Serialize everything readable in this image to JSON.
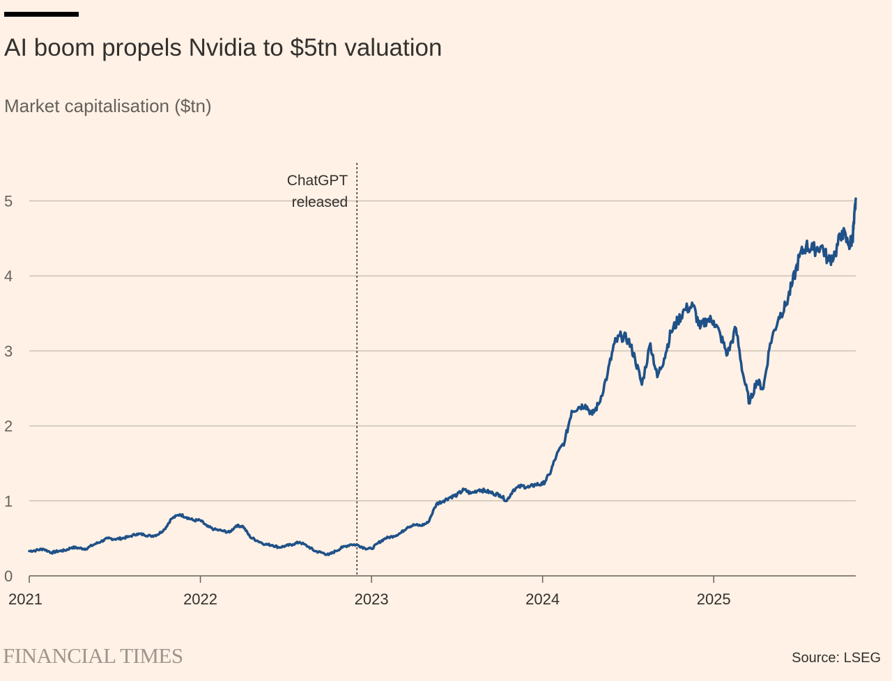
{
  "chart_data": {
    "type": "line",
    "title": "AI boom propels Nvidia to $5tn valuation",
    "subtitle": "Market capitalisation ($tn)",
    "xlabel": "",
    "ylabel": "Market capitalisation ($tn)",
    "x_unit": "year (decimal)",
    "xlim": [
      2021.0,
      2025.83
    ],
    "ylim": [
      0,
      5.5
    ],
    "x_ticks": [
      2021,
      2022,
      2023,
      2024,
      2025
    ],
    "x_tick_labels": [
      "2021",
      "2022",
      "2023",
      "2024",
      "2025"
    ],
    "y_ticks": [
      0,
      1,
      2,
      3,
      4,
      5
    ],
    "y_tick_labels": [
      "0",
      "1",
      "2",
      "3",
      "4",
      "5"
    ],
    "grid": true,
    "legend": "none",
    "annotations": [
      {
        "x": 2022.915,
        "lines": [
          "ChatGPT",
          "released"
        ],
        "style": "dotted-vertical"
      }
    ],
    "series": [
      {
        "name": "Nvidia",
        "color": "#1f5188",
        "points": [
          [
            2021.0,
            0.33
          ],
          [
            2021.04,
            0.34
          ],
          [
            2021.08,
            0.36
          ],
          [
            2021.13,
            0.31
          ],
          [
            2021.17,
            0.33
          ],
          [
            2021.21,
            0.34
          ],
          [
            2021.25,
            0.38
          ],
          [
            2021.29,
            0.37
          ],
          [
            2021.33,
            0.36
          ],
          [
            2021.38,
            0.42
          ],
          [
            2021.42,
            0.46
          ],
          [
            2021.46,
            0.5
          ],
          [
            2021.5,
            0.49
          ],
          [
            2021.54,
            0.5
          ],
          [
            2021.58,
            0.52
          ],
          [
            2021.63,
            0.56
          ],
          [
            2021.67,
            0.55
          ],
          [
            2021.71,
            0.53
          ],
          [
            2021.75,
            0.55
          ],
          [
            2021.79,
            0.62
          ],
          [
            2021.83,
            0.76
          ],
          [
            2021.88,
            0.82
          ],
          [
            2021.92,
            0.78
          ],
          [
            2021.96,
            0.74
          ],
          [
            2022.0,
            0.74
          ],
          [
            2022.04,
            0.66
          ],
          [
            2022.08,
            0.62
          ],
          [
            2022.13,
            0.6
          ],
          [
            2022.17,
            0.58
          ],
          [
            2022.21,
            0.67
          ],
          [
            2022.25,
            0.66
          ],
          [
            2022.29,
            0.52
          ],
          [
            2022.33,
            0.47
          ],
          [
            2022.38,
            0.42
          ],
          [
            2022.42,
            0.41
          ],
          [
            2022.46,
            0.38
          ],
          [
            2022.5,
            0.4
          ],
          [
            2022.54,
            0.42
          ],
          [
            2022.58,
            0.45
          ],
          [
            2022.63,
            0.39
          ],
          [
            2022.67,
            0.33
          ],
          [
            2022.71,
            0.31
          ],
          [
            2022.75,
            0.28
          ],
          [
            2022.79,
            0.33
          ],
          [
            2022.83,
            0.38
          ],
          [
            2022.88,
            0.42
          ],
          [
            2022.92,
            0.41
          ],
          [
            2022.96,
            0.37
          ],
          [
            2023.0,
            0.36
          ],
          [
            2023.04,
            0.44
          ],
          [
            2023.08,
            0.5
          ],
          [
            2023.13,
            0.53
          ],
          [
            2023.17,
            0.57
          ],
          [
            2023.21,
            0.65
          ],
          [
            2023.25,
            0.68
          ],
          [
            2023.29,
            0.67
          ],
          [
            2023.33,
            0.71
          ],
          [
            2023.38,
            0.96
          ],
          [
            2023.42,
            1.0
          ],
          [
            2023.46,
            1.05
          ],
          [
            2023.5,
            1.08
          ],
          [
            2023.54,
            1.15
          ],
          [
            2023.58,
            1.1
          ],
          [
            2023.63,
            1.15
          ],
          [
            2023.67,
            1.13
          ],
          [
            2023.71,
            1.1
          ],
          [
            2023.75,
            1.08
          ],
          [
            2023.79,
            1.0
          ],
          [
            2023.83,
            1.15
          ],
          [
            2023.88,
            1.2
          ],
          [
            2023.92,
            1.18
          ],
          [
            2023.96,
            1.22
          ],
          [
            2024.0,
            1.22
          ],
          [
            2024.04,
            1.35
          ],
          [
            2024.08,
            1.6
          ],
          [
            2024.13,
            1.8
          ],
          [
            2024.17,
            2.2
          ],
          [
            2024.21,
            2.25
          ],
          [
            2024.25,
            2.28
          ],
          [
            2024.29,
            2.15
          ],
          [
            2024.33,
            2.3
          ],
          [
            2024.38,
            2.7
          ],
          [
            2024.42,
            3.1
          ],
          [
            2024.46,
            3.2
          ],
          [
            2024.5,
            3.15
          ],
          [
            2024.54,
            2.9
          ],
          [
            2024.58,
            2.55
          ],
          [
            2024.63,
            3.1
          ],
          [
            2024.67,
            2.65
          ],
          [
            2024.71,
            2.9
          ],
          [
            2024.75,
            3.25
          ],
          [
            2024.79,
            3.4
          ],
          [
            2024.83,
            3.55
          ],
          [
            2024.88,
            3.6
          ],
          [
            2024.92,
            3.3
          ],
          [
            2024.96,
            3.42
          ],
          [
            2025.0,
            3.4
          ],
          [
            2025.04,
            3.2
          ],
          [
            2025.08,
            2.95
          ],
          [
            2025.13,
            3.3
          ],
          [
            2025.17,
            2.7
          ],
          [
            2025.21,
            2.3
          ],
          [
            2025.25,
            2.6
          ],
          [
            2025.29,
            2.5
          ],
          [
            2025.33,
            3.1
          ],
          [
            2025.38,
            3.45
          ],
          [
            2025.42,
            3.6
          ],
          [
            2025.46,
            3.9
          ],
          [
            2025.5,
            4.25
          ],
          [
            2025.54,
            4.4
          ],
          [
            2025.58,
            4.35
          ],
          [
            2025.63,
            4.4
          ],
          [
            2025.67,
            4.2
          ],
          [
            2025.71,
            4.3
          ],
          [
            2025.75,
            4.6
          ],
          [
            2025.79,
            4.4
          ],
          [
            2025.81,
            4.5
          ],
          [
            2025.82,
            4.7
          ],
          [
            2025.83,
            5.03
          ]
        ]
      }
    ]
  },
  "header": {
    "title": "AI boom propels Nvidia to $5tn valuation",
    "subtitle": "Market capitalisation ($tn)"
  },
  "footer": {
    "brand": "FINANCIAL TIMES",
    "source": "Source: LSEG"
  },
  "colors": {
    "background": "#fff1e5",
    "line": "#1f5188",
    "grid": "#ccc1b7",
    "text": "#33302e"
  }
}
